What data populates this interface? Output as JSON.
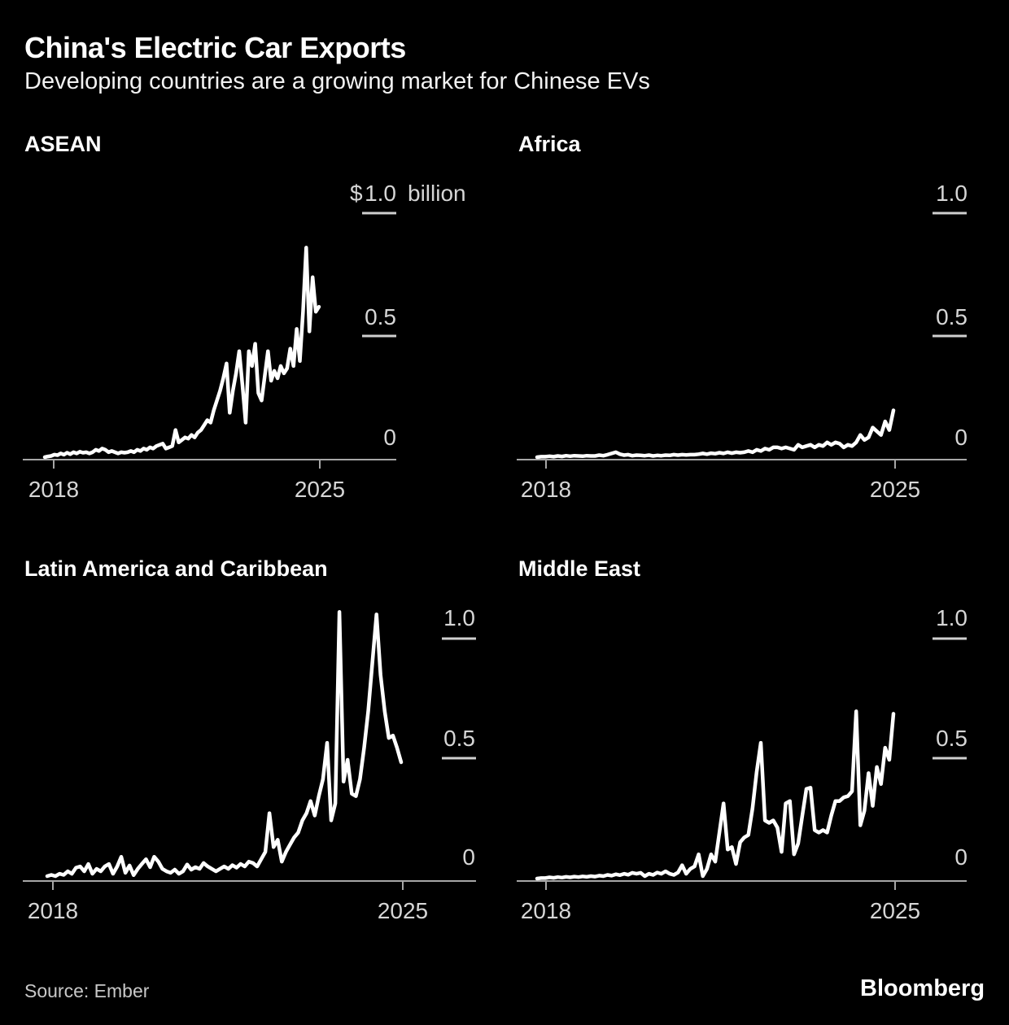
{
  "header": {
    "title": "China's Electric Car Exports",
    "subtitle": "Developing countries are a growing market for Chinese EVs"
  },
  "footer": {
    "source": "Source: Ember",
    "brand": "Bloomberg"
  },
  "y_axis": {
    "unit_prefix": "$",
    "unit_suffix": "billion"
  },
  "chart_data": [
    {
      "type": "line",
      "title": "ASEAN",
      "unit": "USD billion per month",
      "x_start": "2017-11",
      "x_freq": "monthly",
      "x_tick_labels": [
        "2018",
        "2025"
      ],
      "y_tick_labels": [
        "1.0",
        "0.5",
        "0"
      ],
      "y_ticks": [
        1.0,
        0.5,
        0
      ],
      "ylim": [
        0,
        1.15
      ],
      "grid": false,
      "legend": "none",
      "values": [
        0.01,
        0.013,
        0.015,
        0.02,
        0.018,
        0.025,
        0.02,
        0.028,
        0.022,
        0.03,
        0.025,
        0.032,
        0.028,
        0.03,
        0.025,
        0.03,
        0.04,
        0.035,
        0.045,
        0.04,
        0.03,
        0.035,
        0.03,
        0.025,
        0.03,
        0.028,
        0.03,
        0.035,
        0.03,
        0.04,
        0.035,
        0.045,
        0.04,
        0.05,
        0.045,
        0.055,
        0.06,
        0.065,
        0.045,
        0.05,
        0.055,
        0.12,
        0.07,
        0.08,
        0.09,
        0.085,
        0.1,
        0.09,
        0.11,
        0.12,
        0.14,
        0.16,
        0.15,
        0.2,
        0.24,
        0.28,
        0.33,
        0.39,
        0.19,
        0.28,
        0.35,
        0.44,
        0.3,
        0.15,
        0.44,
        0.38,
        0.47,
        0.27,
        0.24,
        0.34,
        0.44,
        0.32,
        0.36,
        0.33,
        0.38,
        0.35,
        0.37,
        0.45,
        0.38,
        0.53,
        0.4,
        0.6,
        0.86,
        0.52,
        0.74,
        0.6,
        0.62
      ]
    },
    {
      "type": "line",
      "title": "Africa",
      "unit": "USD billion per month",
      "x_start": "2017-11",
      "x_freq": "monthly",
      "x_tick_labels": [
        "2018",
        "2025"
      ],
      "y_tick_labels": [
        "1.0",
        "0.5",
        "0"
      ],
      "y_ticks": [
        1.0,
        0.5,
        0
      ],
      "ylim": [
        0,
        1.15
      ],
      "grid": false,
      "legend": "none",
      "values": [
        0.01,
        0.012,
        0.012,
        0.014,
        0.012,
        0.015,
        0.013,
        0.016,
        0.014,
        0.016,
        0.015,
        0.014,
        0.016,
        0.015,
        0.015,
        0.018,
        0.016,
        0.02,
        0.025,
        0.03,
        0.022,
        0.018,
        0.02,
        0.016,
        0.018,
        0.017,
        0.016,
        0.018,
        0.015,
        0.017,
        0.016,
        0.018,
        0.017,
        0.02,
        0.018,
        0.02,
        0.019,
        0.02,
        0.02,
        0.022,
        0.025,
        0.022,
        0.026,
        0.024,
        0.028,
        0.025,
        0.03,
        0.026,
        0.03,
        0.028,
        0.03,
        0.035,
        0.03,
        0.04,
        0.035,
        0.045,
        0.04,
        0.05,
        0.05,
        0.045,
        0.05,
        0.045,
        0.04,
        0.06,
        0.05,
        0.055,
        0.06,
        0.05,
        0.06,
        0.055,
        0.07,
        0.06,
        0.07,
        0.065,
        0.05,
        0.06,
        0.055,
        0.07,
        0.1,
        0.08,
        0.09,
        0.13,
        0.115,
        0.1,
        0.155,
        0.12,
        0.2
      ]
    },
    {
      "type": "line",
      "title": "Latin America and Caribbean",
      "unit": "USD billion per month",
      "x_start": "2017-11",
      "x_freq": "monthly",
      "x_tick_labels": [
        "2018",
        "2025"
      ],
      "y_tick_labels": [
        "1.0",
        "0.5",
        "0"
      ],
      "y_ticks": [
        1.0,
        0.5,
        0
      ],
      "ylim": [
        0,
        1.15
      ],
      "grid": false,
      "legend": "none",
      "values": [
        0.02,
        0.025,
        0.02,
        0.03,
        0.025,
        0.04,
        0.03,
        0.055,
        0.06,
        0.04,
        0.07,
        0.03,
        0.05,
        0.04,
        0.06,
        0.07,
        0.03,
        0.06,
        0.1,
        0.034,
        0.064,
        0.024,
        0.05,
        0.07,
        0.09,
        0.057,
        0.1,
        0.08,
        0.05,
        0.04,
        0.034,
        0.047,
        0.03,
        0.04,
        0.068,
        0.047,
        0.057,
        0.05,
        0.074,
        0.06,
        0.05,
        0.04,
        0.05,
        0.06,
        0.05,
        0.065,
        0.055,
        0.07,
        0.06,
        0.08,
        0.074,
        0.06,
        0.09,
        0.12,
        0.28,
        0.14,
        0.17,
        0.08,
        0.12,
        0.15,
        0.18,
        0.2,
        0.25,
        0.28,
        0.33,
        0.27,
        0.35,
        0.42,
        0.57,
        0.25,
        0.32,
        1.11,
        0.41,
        0.5,
        0.36,
        0.35,
        0.42,
        0.55,
        0.7,
        0.9,
        1.1,
        0.85,
        0.7,
        0.59,
        0.6,
        0.55,
        0.49
      ]
    },
    {
      "type": "line",
      "title": "Middle East",
      "unit": "USD billion per month",
      "x_start": "2017-11",
      "x_freq": "monthly",
      "x_tick_labels": [
        "2018",
        "2025"
      ],
      "y_tick_labels": [
        "1.0",
        "0.5",
        "0"
      ],
      "y_ticks": [
        1.0,
        0.5,
        0
      ],
      "ylim": [
        0,
        1.15
      ],
      "grid": false,
      "legend": "none",
      "values": [
        0.01,
        0.012,
        0.012,
        0.015,
        0.013,
        0.016,
        0.014,
        0.017,
        0.015,
        0.018,
        0.016,
        0.019,
        0.017,
        0.02,
        0.018,
        0.022,
        0.02,
        0.025,
        0.022,
        0.028,
        0.024,
        0.03,
        0.026,
        0.034,
        0.03,
        0.034,
        0.02,
        0.03,
        0.025,
        0.035,
        0.03,
        0.04,
        0.03,
        0.025,
        0.035,
        0.065,
        0.03,
        0.05,
        0.06,
        0.11,
        0.02,
        0.05,
        0.11,
        0.08,
        0.2,
        0.32,
        0.13,
        0.14,
        0.07,
        0.16,
        0.18,
        0.19,
        0.3,
        0.45,
        0.57,
        0.25,
        0.24,
        0.25,
        0.22,
        0.12,
        0.32,
        0.33,
        0.11,
        0.155,
        0.27,
        0.38,
        0.385,
        0.21,
        0.2,
        0.21,
        0.2,
        0.27,
        0.33,
        0.33,
        0.345,
        0.35,
        0.37,
        0.7,
        0.23,
        0.29,
        0.445,
        0.31,
        0.47,
        0.4,
        0.55,
        0.5,
        0.69
      ]
    }
  ]
}
